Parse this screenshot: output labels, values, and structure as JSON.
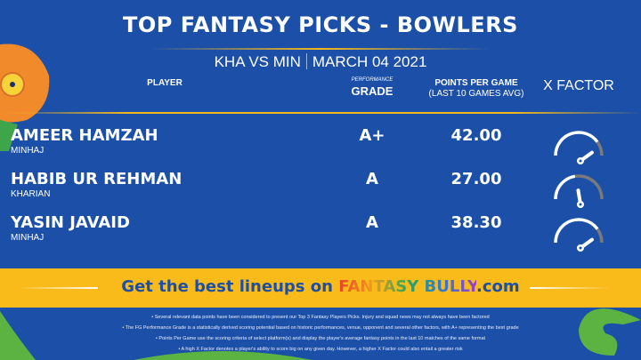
{
  "header": {
    "title": "TOP FANTASY PICKS - BOWLERS",
    "match": "KHA VS MIN",
    "date": "MARCH 04 2021"
  },
  "columns": {
    "player": "PLAYER",
    "grade_small": "PERFORMANCE",
    "grade": "GRADE",
    "points": "POINTS PER GAME",
    "points_sub": "(LAST 10 GAMES AVG)",
    "xfactor": "X FACTOR"
  },
  "players": [
    {
      "name": "AMEER HAMZAH",
      "team": "MINHAJ",
      "grade": "A+",
      "points": "42.00",
      "xfactor": 0.8
    },
    {
      "name": "HABIB UR REHMAN",
      "team": "KHARIAN",
      "grade": "A",
      "points": "27.00",
      "xfactor": 0.45
    },
    {
      "name": "YASIN JAVAID",
      "team": "MINHAJ",
      "grade": "A",
      "points": "38.30",
      "xfactor": 0.8
    }
  ],
  "cta": {
    "text": "Get the best lineups on ",
    "brand": "FANTASY BULLY",
    ".com": ".com"
  },
  "notes": [
    "Several relevant data points have been considered to present our Top 3 Fantasy Players Picks. Injury and squad news may not always have been factored",
    "The FG Performance Grade is a statistically derived scoring potential based on historic performances, venue, opponent and several other factors, with A+ representing the best grade",
    "Points Per Game use the scoring criteria of select platform(s) and display the player's average fantasy points in the last 10 matches of the same format",
    "A high X Factor denotes a player's ability to score big on any given day. However, a higher X Factor could also entail a greater risk"
  ],
  "colors": {
    "background": "#1c50a8",
    "accent": "#f8bb1a",
    "gauge_fill": "#ffffff",
    "gauge_rest": "#7a7a7a"
  }
}
